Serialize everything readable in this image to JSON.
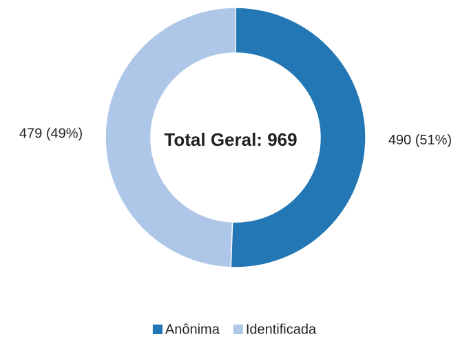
{
  "chart_data": {
    "type": "donut",
    "center_label": "Total Geral: 969",
    "categories": [
      "Anônima",
      "Identificada"
    ],
    "values": [
      490,
      479
    ],
    "value_labels": [
      "490 (51%)",
      "479 (49%)"
    ],
    "colors": [
      "#2277b4",
      "#aec7e8"
    ]
  }
}
